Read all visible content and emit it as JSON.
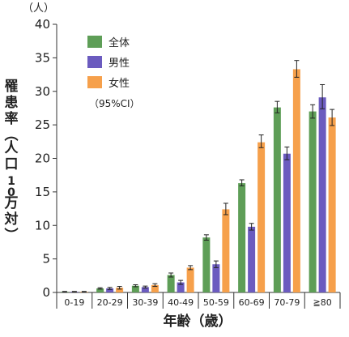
{
  "chart_data": {
    "type": "bar",
    "title": "",
    "ylabel": "罹患率（人口10万対）",
    "xlabel": "年齢（歳）",
    "y_unit": "（人）",
    "ylim": [
      0,
      40
    ],
    "yticks": [
      0,
      5,
      10,
      15,
      20,
      25,
      30,
      35,
      40
    ],
    "grid": false,
    "legend_position": "top-left",
    "legend_note": "（95%CI）",
    "categories": [
      "0-19",
      "20-29",
      "30-39",
      "40-49",
      "50-59",
      "60-69",
      "70-79",
      "≧80"
    ],
    "series": [
      {
        "name": "全体",
        "color": "#5e9e57",
        "values": [
          0.1,
          0.6,
          1.0,
          2.6,
          8.2,
          16.3,
          27.6,
          27.0
        ],
        "err_low": [
          0.05,
          0.5,
          0.85,
          2.3,
          7.8,
          15.9,
          26.8,
          26.0
        ],
        "err_high": [
          0.15,
          0.7,
          1.15,
          2.9,
          8.6,
          16.8,
          28.5,
          28.0
        ]
      },
      {
        "name": "男性",
        "color": "#6b5bbf",
        "values": [
          0.1,
          0.6,
          0.8,
          1.5,
          4.2,
          9.8,
          20.7,
          29.1
        ],
        "err_low": [
          0.05,
          0.45,
          0.65,
          1.2,
          3.7,
          9.3,
          19.8,
          27.4
        ],
        "err_high": [
          0.15,
          0.75,
          0.95,
          1.8,
          4.7,
          10.3,
          21.7,
          31.0
        ]
      },
      {
        "name": "女性",
        "color": "#f6a04b",
        "values": [
          0.1,
          0.7,
          1.1,
          3.7,
          12.4,
          22.4,
          33.3,
          26.1
        ],
        "err_low": [
          0.05,
          0.5,
          0.9,
          3.4,
          11.6,
          21.6,
          32.1,
          24.9
        ],
        "err_high": [
          0.15,
          0.9,
          1.3,
          4.0,
          13.3,
          23.5,
          34.6,
          27.3
        ]
      }
    ]
  }
}
